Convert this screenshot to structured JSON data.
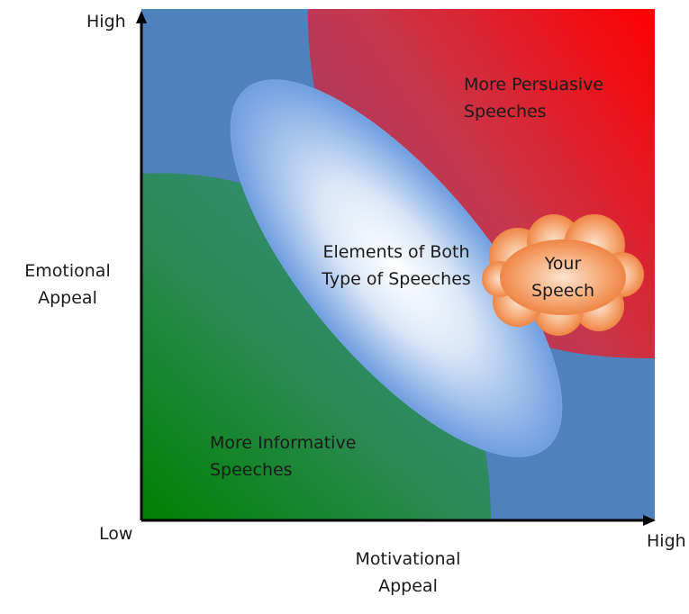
{
  "axes": {
    "y_high": "High",
    "y_title_line1": "Emotional",
    "y_title_line2": "Appeal",
    "origin_low": "Low",
    "x_high": "High",
    "x_title_line1": "Motivational",
    "x_title_line2": "Appeal"
  },
  "regions": {
    "persuasive_line1": "More Persuasive",
    "persuasive_line2": "Speeches",
    "informative_line1": "More Informative",
    "informative_line2": "Speeches",
    "both_line1": "Elements of Both",
    "both_line2": "Type of Speeches",
    "your_line1": "Your",
    "your_line2": "Speech"
  },
  "colors": {
    "background_blue": "#4f81bd",
    "persuasive_red": "#ff0000",
    "informative_green": "#008000",
    "ellipse_center": "#ffffff",
    "ellipse_edge": "#6f9ee0",
    "cloud": "#f08a4b",
    "text": "#1a1a1a"
  }
}
